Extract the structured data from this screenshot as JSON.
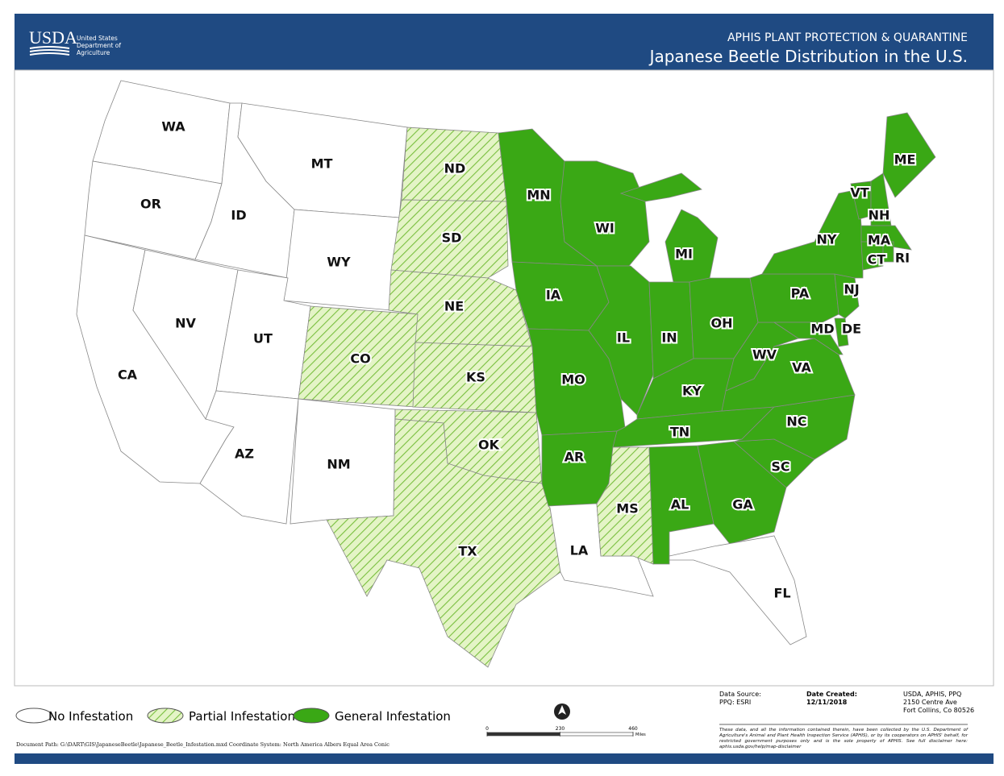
{
  "header": {
    "logo": "USDA",
    "agency": [
      "United States",
      "Department of",
      "Agriculture"
    ],
    "subtitle": "APHIS PLANT PROTECTION & QUARANTINE",
    "title": "Japanese Beetle Distribution in the U.S."
  },
  "legend": {
    "items": [
      {
        "label": "No Infestation",
        "color": "#ffffff",
        "pattern": "solid"
      },
      {
        "label": "Partial Infestation",
        "color": "#e4f4c6",
        "pattern": "hatch",
        "hatch_color": "#79bf3e"
      },
      {
        "label": "General Infestation",
        "color": "#3aa815",
        "pattern": "solid"
      }
    ]
  },
  "states": [
    {
      "label": "WA",
      "infestation": "No Infestation"
    },
    {
      "label": "OR",
      "infestation": "No Infestation"
    },
    {
      "label": "CA",
      "infestation": "No Infestation"
    },
    {
      "label": "NV",
      "infestation": "No Infestation"
    },
    {
      "label": "ID",
      "infestation": "No Infestation"
    },
    {
      "label": "MT",
      "infestation": "No Infestation"
    },
    {
      "label": "WY",
      "infestation": "No Infestation"
    },
    {
      "label": "UT",
      "infestation": "No Infestation"
    },
    {
      "label": "AZ",
      "infestation": "No Infestation"
    },
    {
      "label": "CO",
      "infestation": "Partial Infestation"
    },
    {
      "label": "NM",
      "infestation": "No Infestation"
    },
    {
      "label": "ND",
      "infestation": "Partial Infestation"
    },
    {
      "label": "SD",
      "infestation": "Partial Infestation"
    },
    {
      "label": "NE",
      "infestation": "Partial Infestation"
    },
    {
      "label": "KS",
      "infestation": "Partial Infestation"
    },
    {
      "label": "OK",
      "infestation": "Partial Infestation"
    },
    {
      "label": "TX",
      "infestation": "Partial Infestation"
    },
    {
      "label": "MN",
      "infestation": "General Infestation"
    },
    {
      "label": "IA",
      "infestation": "General Infestation"
    },
    {
      "label": "MO",
      "infestation": "General Infestation"
    },
    {
      "label": "AR",
      "infestation": "General Infestation"
    },
    {
      "label": "LA",
      "infestation": "No Infestation"
    },
    {
      "label": "WI",
      "infestation": "General Infestation"
    },
    {
      "label": "IL",
      "infestation": "General Infestation"
    },
    {
      "label": "IN",
      "infestation": "General Infestation"
    },
    {
      "label": "MI",
      "infestation": "General Infestation"
    },
    {
      "label": "OH",
      "infestation": "General Infestation"
    },
    {
      "label": "KY",
      "infestation": "General Infestation"
    },
    {
      "label": "TN",
      "infestation": "General Infestation"
    },
    {
      "label": "MS",
      "infestation": "Partial Infestation"
    },
    {
      "label": "AL",
      "infestation": "General Infestation"
    },
    {
      "label": "GA",
      "infestation": "General Infestation"
    },
    {
      "label": "FL",
      "infestation": "No Infestation"
    },
    {
      "label": "SC",
      "infestation": "General Infestation"
    },
    {
      "label": "NC",
      "infestation": "General Infestation"
    },
    {
      "label": "VA",
      "infestation": "General Infestation"
    },
    {
      "label": "WV",
      "infestation": "General Infestation"
    },
    {
      "label": "PA",
      "infestation": "General Infestation"
    },
    {
      "label": "MD",
      "infestation": "General Infestation"
    },
    {
      "label": "DE",
      "infestation": "General Infestation"
    },
    {
      "label": "NJ",
      "infestation": "General Infestation"
    },
    {
      "label": "NY",
      "infestation": "General Infestation"
    },
    {
      "label": "VT",
      "infestation": "General Infestation"
    },
    {
      "label": "NH",
      "infestation": "General Infestation"
    },
    {
      "label": "ME",
      "infestation": "General Infestation"
    },
    {
      "label": "MA",
      "infestation": "General Infestation"
    },
    {
      "label": "CT",
      "infestation": "General Infestation"
    },
    {
      "label": "RI",
      "infestation": "General Infestation"
    }
  ],
  "scale_bar": {
    "ticks": [
      0,
      230,
      460
    ],
    "unit": "Miles"
  },
  "footer": {
    "data_source_label": "Data Source:",
    "data_source": "PPQ: ESRI",
    "date_label": "Date Created:",
    "date": "12/11/2018",
    "address": [
      "USDA, APHIS, PPQ",
      "2150 Centre Ave",
      "Fort Collins, Co 80526"
    ],
    "disclaimer": "These data, and all the information contained therein, have been collected by the U.S. Department of Agriculture's Animal and Plant Health Inspection Service (APHIS), or by its cooperators on APHIS' behalf, for restricted government purposes only and is the sole property of APHIS. See full disclaimer here: aphis.usda.gov/help/map-disclaimer",
    "document_path": "Document Path: G:\\DART\\GIS\\JapaneseBeetle\\Japanese_Beetle_Infestation.mxd Coordinate System: North America Albers Equal Area Conic"
  }
}
